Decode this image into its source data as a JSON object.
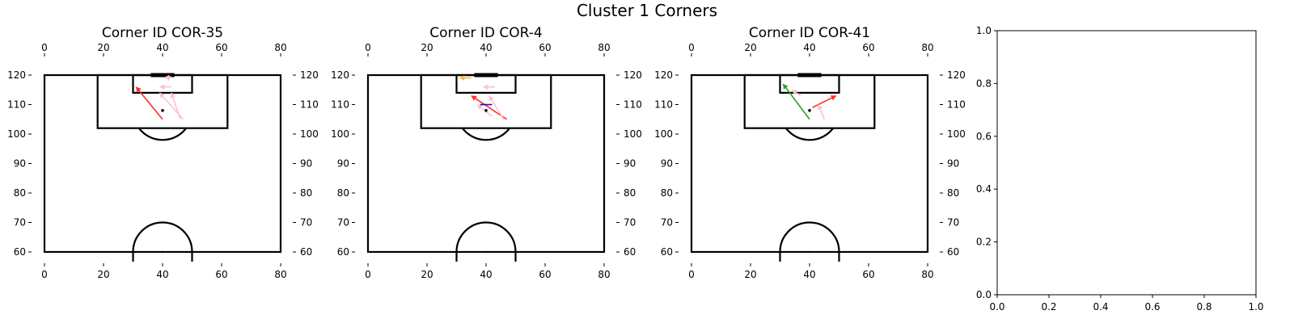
{
  "figure": {
    "title": "Cluster 1 Corners"
  },
  "chart_data": [
    {
      "type": "scatter",
      "subtype": "football-pitch-passes",
      "title": "Corner ID COR-35",
      "x_ticks": [
        "0",
        "20",
        "40",
        "60",
        "80"
      ],
      "y_ticks": [
        "60",
        "70",
        "80",
        "90",
        "100",
        "110",
        "120"
      ],
      "xlim": [
        0,
        80
      ],
      "ylim": [
        60,
        120
      ],
      "passes": [
        {
          "x0": 40,
          "y0": 105,
          "x1": 31,
          "y1": 116,
          "color": "#ff2a2a"
        },
        {
          "x0": 47,
          "y0": 105,
          "x1": 39,
          "y1": 114,
          "color": "#ffc0cb"
        },
        {
          "x0": 46,
          "y0": 105,
          "x1": 43,
          "y1": 114,
          "color": "#ffc0cb"
        },
        {
          "x0": 42,
          "y0": 120,
          "x1": 42,
          "y1": 118,
          "color": "#ffc0cb"
        },
        {
          "x0": 43,
          "y0": 116,
          "x1": 39,
          "y1": 116,
          "color": "#ffc0cb"
        }
      ],
      "points": [
        {
          "x": 40,
          "y": 108,
          "color": "#000000"
        }
      ]
    },
    {
      "type": "scatter",
      "subtype": "football-pitch-passes",
      "title": "Corner ID COR-4",
      "x_ticks": [
        "0",
        "20",
        "40",
        "60",
        "80"
      ],
      "y_ticks": [
        "60",
        "70",
        "80",
        "90",
        "100",
        "110",
        "120"
      ],
      "xlim": [
        0,
        80
      ],
      "ylim": [
        60,
        120
      ],
      "passes": [
        {
          "x0": 35,
          "y0": 119,
          "x1": 31,
          "y1": 119,
          "color": "#f0c040"
        },
        {
          "x0": 47,
          "y0": 105,
          "x1": 35,
          "y1": 113,
          "color": "#ff2a2a"
        },
        {
          "x0": 42,
          "y0": 106,
          "x1": 37,
          "y1": 110,
          "color": "#ffc0cb"
        },
        {
          "x0": 46,
          "y0": 105,
          "x1": 41,
          "y1": 113,
          "color": "#ffc0cb"
        },
        {
          "x0": 43,
          "y0": 116,
          "x1": 39,
          "y1": 116,
          "color": "#ffc0cb"
        },
        {
          "x0": 38,
          "y0": 110,
          "x1": 42,
          "y1": 110,
          "color": "#1010c0",
          "style": "segment"
        }
      ],
      "points": [
        {
          "x": 40,
          "y": 108,
          "color": "#000000"
        }
      ]
    },
    {
      "type": "scatter",
      "subtype": "football-pitch-passes",
      "title": "Corner ID COR-41",
      "x_ticks": [
        "0",
        "20",
        "40",
        "60",
        "80"
      ],
      "y_ticks": [
        "60",
        "70",
        "80",
        "90",
        "100",
        "110",
        "120"
      ],
      "xlim": [
        0,
        80
      ],
      "ylim": [
        60,
        120
      ],
      "passes": [
        {
          "x0": 40,
          "y0": 105,
          "x1": 31,
          "y1": 117,
          "color": "#2ca02c"
        },
        {
          "x0": 41,
          "y0": 109,
          "x1": 49,
          "y1": 113,
          "color": "#ff2a2a"
        },
        {
          "x0": 45,
          "y0": 105,
          "x1": 43,
          "y1": 110,
          "color": "#ffc0cb"
        },
        {
          "x0": 37,
          "y0": 113,
          "x1": 34,
          "y1": 115,
          "color": "#ffc0cb"
        }
      ],
      "points": [
        {
          "x": 40,
          "y": 108,
          "color": "#000000"
        }
      ]
    },
    {
      "type": "scatter",
      "title": "",
      "x_ticks": [
        "0.0",
        "0.2",
        "0.4",
        "0.6",
        "0.8",
        "1.0"
      ],
      "y_ticks": [
        "0.0",
        "0.2",
        "0.4",
        "0.6",
        "0.8",
        "1.0"
      ],
      "xlim": [
        0,
        1
      ],
      "ylim": [
        0,
        1
      ],
      "series": []
    }
  ]
}
